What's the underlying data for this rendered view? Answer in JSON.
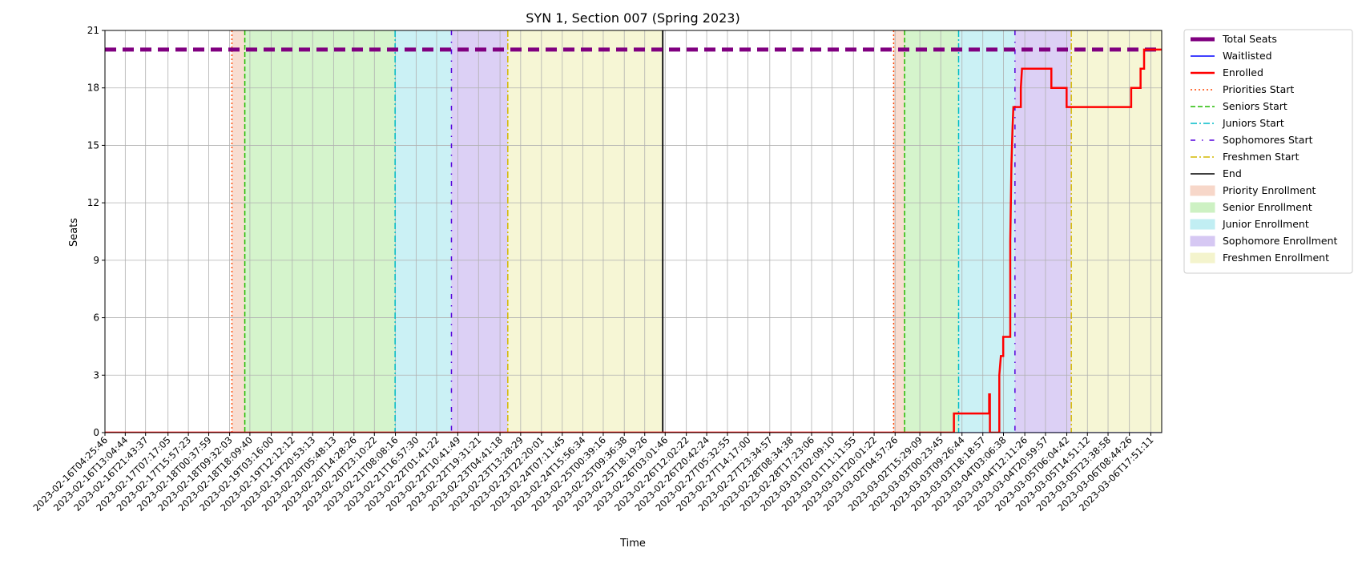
{
  "chart_data": {
    "type": "line",
    "title": "SYN 1, Section 007 (Spring 2023)",
    "xlabel": "Time",
    "ylabel": "Seats",
    "ylim": [
      0,
      21
    ],
    "xlim": [
      "2023-02-16T04:25:46",
      "2023-03-06T22:30:00"
    ],
    "y_ticks": [
      0,
      3,
      6,
      9,
      12,
      15,
      18,
      21
    ],
    "x_ticks": [
      "2023-02-16T04:25:46",
      "2023-02-16T13:04:44",
      "2023-02-16T21:43:37",
      "2023-02-17T07:17:05",
      "2023-02-17T15:57:23",
      "2023-02-18T00:37:59",
      "2023-02-18T09:32:03",
      "2023-02-18T18:09:40",
      "2023-02-19T03:16:00",
      "2023-02-19T12:12:12",
      "2023-02-19T20:53:13",
      "2023-02-20T05:48:13",
      "2023-02-20T14:28:26",
      "2023-02-20T23:10:22",
      "2023-02-21T08:08:16",
      "2023-02-21T16:57:30",
      "2023-02-22T01:41:22",
      "2023-02-22T10:41:49",
      "2023-02-22T19:31:21",
      "2023-02-23T04:41:18",
      "2023-02-23T13:28:29",
      "2023-02-23T22:20:01",
      "2023-02-24T07:11:45",
      "2023-02-24T15:56:34",
      "2023-02-25T00:39:16",
      "2023-02-25T09:36:38",
      "2023-02-25T18:19:26",
      "2023-02-26T03:01:46",
      "2023-02-26T12:02:22",
      "2023-02-26T20:42:24",
      "2023-02-27T05:32:55",
      "2023-02-27T14:17:00",
      "2023-02-27T23:34:57",
      "2023-02-28T08:34:38",
      "2023-02-28T17:23:06",
      "2023-03-01T02:09:10",
      "2023-03-01T11:11:55",
      "2023-03-01T20:01:22",
      "2023-03-02T04:57:26",
      "2023-03-02T15:29:09",
      "2023-03-03T00:23:45",
      "2023-03-03T09:26:44",
      "2023-03-03T18:18:57",
      "2023-03-04T03:06:38",
      "2023-03-04T12:11:26",
      "2023-03-04T20:59:57",
      "2023-03-05T06:04:42",
      "2023-03-05T14:51:12",
      "2023-03-05T23:38:58",
      "2023-03-06T08:44:26",
      "2023-03-06T17:51:11"
    ],
    "grid": true,
    "legend_placement": "outside upper right",
    "series": [
      {
        "name": "Total Seats",
        "color": "#800080",
        "style": "dashed-thick",
        "points": [
          [
            "2023-02-16T04:25:46",
            20
          ],
          [
            "2023-03-06T22:30:00",
            20
          ]
        ]
      },
      {
        "name": "Waitlisted",
        "color": "#0000ff",
        "style": "solid",
        "points": [
          [
            "2023-02-16T04:25:46",
            0
          ],
          [
            "2023-03-06T22:30:00",
            0
          ]
        ]
      },
      {
        "name": "Enrolled",
        "color": "#ff0000",
        "style": "solid-thick",
        "points": [
          [
            "2023-02-16T04:25:46",
            0
          ],
          [
            "2023-03-03T06:00:00",
            0
          ],
          [
            "2023-03-03T06:00:00",
            1
          ],
          [
            "2023-03-03T21:00:00",
            1
          ],
          [
            "2023-03-03T21:00:00",
            2
          ],
          [
            "2023-03-03T21:20:00",
            2
          ],
          [
            "2023-03-03T21:20:00",
            0
          ],
          [
            "2023-03-04T01:20:00",
            0
          ],
          [
            "2023-03-04T01:20:00",
            3
          ],
          [
            "2023-03-04T02:00:00",
            4
          ],
          [
            "2023-03-04T03:00:00",
            4
          ],
          [
            "2023-03-04T03:00:00",
            5
          ],
          [
            "2023-03-04T06:00:00",
            5
          ],
          [
            "2023-03-04T06:00:00",
            10
          ],
          [
            "2023-03-04T06:30:00",
            14
          ],
          [
            "2023-03-04T07:00:00",
            16
          ],
          [
            "2023-03-04T07:20:00",
            17
          ],
          [
            "2023-03-04T10:30:00",
            17
          ],
          [
            "2023-03-04T10:30:00",
            18
          ],
          [
            "2023-03-04T11:00:00",
            19
          ],
          [
            "2023-03-04T23:30:00",
            19
          ],
          [
            "2023-03-04T23:30:00",
            18
          ],
          [
            "2023-03-05T06:00:00",
            18
          ],
          [
            "2023-03-05T06:00:00",
            17
          ],
          [
            "2023-03-06T09:30:00",
            17
          ],
          [
            "2023-03-06T09:30:00",
            18
          ],
          [
            "2023-03-06T13:30:00",
            18
          ],
          [
            "2023-03-06T13:30:00",
            19
          ],
          [
            "2023-03-06T15:00:00",
            19
          ],
          [
            "2023-03-06T15:00:00",
            20
          ],
          [
            "2023-03-06T22:30:00",
            20
          ]
        ]
      }
    ],
    "vlines": [
      {
        "name": "Priorities Start",
        "color": "#ff4500",
        "style": "dotted",
        "x": [
          "2023-02-18T10:30:00",
          "2023-03-02T04:20:00"
        ]
      },
      {
        "name": "Seniors Start",
        "color": "#22bb00",
        "style": "dashed",
        "x": [
          "2023-02-18T16:00:00",
          "2023-03-02T09:00:00"
        ]
      },
      {
        "name": "Juniors Start",
        "color": "#00bcc8",
        "style": "dashdot",
        "x": [
          "2023-02-21T08:00:00",
          "2023-03-03T08:00:00"
        ]
      },
      {
        "name": "Sophomores Start",
        "color": "#5500dd",
        "style": "dashdot-sparse",
        "x": [
          "2023-02-22T08:00:00",
          "2023-03-04T08:00:00"
        ]
      },
      {
        "name": "Freshmen Start",
        "color": "#d4b800",
        "style": "dashdot",
        "x": [
          "2023-02-23T08:00:00",
          "2023-03-05T08:00:00"
        ]
      },
      {
        "name": "End",
        "color": "#000000",
        "style": "solid",
        "x": [
          "2023-02-26T02:00:00",
          "2023-03-07T22:00:00"
        ]
      }
    ],
    "spans": [
      {
        "name": "Priority Enrollment",
        "color": "#f4c7b3",
        "ranges": [
          [
            "2023-02-18T10:30:00",
            "2023-02-18T16:00:00"
          ],
          [
            "2023-03-02T04:20:00",
            "2023-03-02T09:00:00"
          ]
        ]
      },
      {
        "name": "Senior Enrollment",
        "color": "#b9ecaa",
        "ranges": [
          [
            "2023-02-18T16:00:00",
            "2023-02-21T08:00:00"
          ],
          [
            "2023-03-02T09:00:00",
            "2023-03-03T08:00:00"
          ]
        ]
      },
      {
        "name": "Junior Enrollment",
        "color": "#a8e8ee",
        "ranges": [
          [
            "2023-02-21T08:00:00",
            "2023-02-22T08:00:00"
          ],
          [
            "2023-03-03T08:00:00",
            "2023-03-04T08:00:00"
          ]
        ]
      },
      {
        "name": "Sophomore Enrollment",
        "color": "#c5b1ee",
        "ranges": [
          [
            "2023-02-22T08:00:00",
            "2023-02-23T08:00:00"
          ],
          [
            "2023-03-04T08:00:00",
            "2023-03-05T08:00:00"
          ]
        ]
      },
      {
        "name": "Freshmen Enrollment",
        "color": "#f0f0b9",
        "ranges": [
          [
            "2023-02-23T08:00:00",
            "2023-02-26T02:00:00"
          ],
          [
            "2023-03-05T08:00:00",
            "2023-03-07T22:00:00"
          ]
        ]
      }
    ]
  }
}
